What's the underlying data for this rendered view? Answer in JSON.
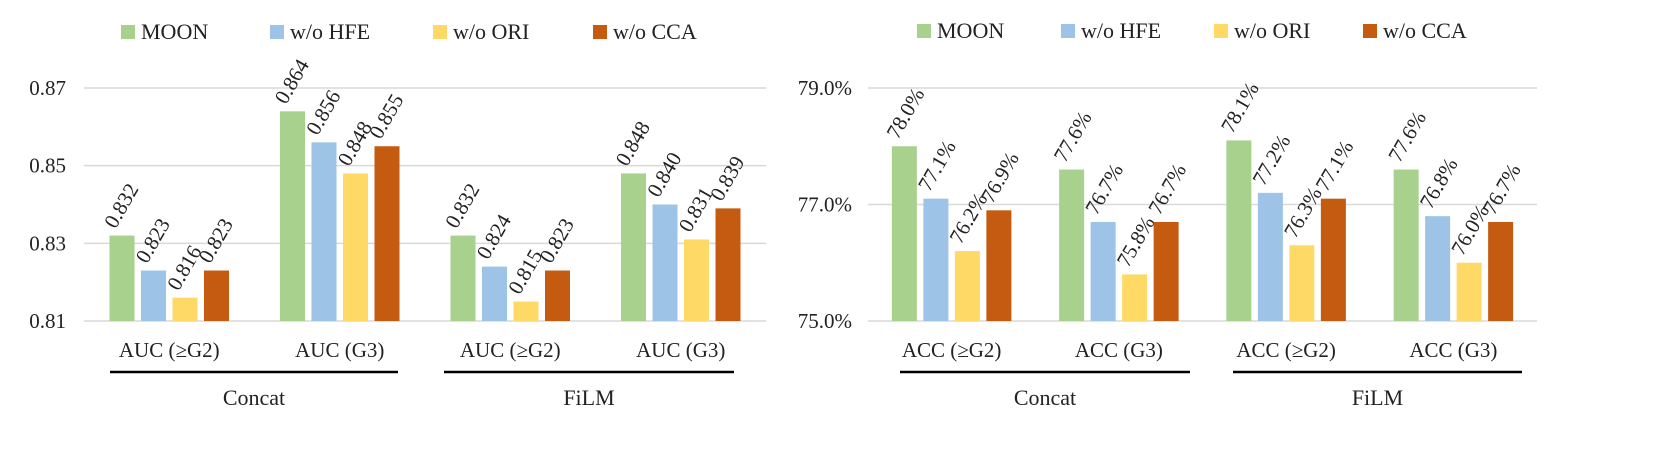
{
  "colors": {
    "MOON": "#a9d18e",
    "w/o HFE": "#9dc3e6",
    "w/o ORI": "#ffd966",
    "w/o CCA": "#c55a11",
    "grid": "#d9d9d9",
    "axis_text": "#222222"
  },
  "chart_data": [
    {
      "type": "bar",
      "metric": "AUC",
      "legend": [
        "MOON",
        "w/o HFE",
        "w/o ORI",
        "w/o CCA"
      ],
      "legend_position": "top",
      "categories": [
        "AUC (≥G2)",
        "AUC (G3)",
        "AUC (≥G2)",
        "AUC (G3)"
      ],
      "groups": [
        {
          "label": "Concat",
          "categories": [
            "AUC (≥G2)",
            "AUC (G3)"
          ]
        },
        {
          "label": "FiLM",
          "categories": [
            "AUC (≥G2)",
            "AUC (G3)"
          ]
        }
      ],
      "series": [
        {
          "name": "MOON",
          "values": [
            0.832,
            0.864,
            0.832,
            0.848
          ]
        },
        {
          "name": "w/o HFE",
          "values": [
            0.823,
            0.856,
            0.824,
            0.84
          ]
        },
        {
          "name": "w/o ORI",
          "values": [
            0.816,
            0.848,
            0.815,
            0.831
          ]
        },
        {
          "name": "w/o CCA",
          "values": [
            0.823,
            0.855,
            0.823,
            0.839
          ]
        }
      ],
      "value_labels": [
        [
          "0.832",
          "0.864",
          "0.832",
          "0.848"
        ],
        [
          "0.823",
          "0.856",
          "0.824",
          "0.840"
        ],
        [
          "0.816",
          "0.848",
          "0.815",
          "0.831"
        ],
        [
          "0.823",
          "0.855",
          "0.823",
          "0.839"
        ]
      ],
      "ylim": [
        0.81,
        0.87
      ],
      "yticks": [
        0.81,
        0.83,
        0.85,
        0.87
      ],
      "ytick_labels": [
        "0.81",
        "0.83",
        "0.85",
        "0.87"
      ],
      "grid": true
    },
    {
      "type": "bar",
      "metric": "ACC",
      "legend": [
        "MOON",
        "w/o HFE",
        "w/o ORI",
        "w/o CCA"
      ],
      "legend_position": "top",
      "categories": [
        "ACC (≥G2)",
        "ACC (G3)",
        "ACC (≥G2)",
        "ACC (G3)"
      ],
      "groups": [
        {
          "label": "Concat",
          "categories": [
            "ACC (≥G2)",
            "ACC (G3)"
          ]
        },
        {
          "label": "FiLM",
          "categories": [
            "ACC (≥G2)",
            "ACC (G3)"
          ]
        }
      ],
      "series": [
        {
          "name": "MOON",
          "values": [
            78.0,
            77.6,
            78.1,
            77.6
          ]
        },
        {
          "name": "w/o HFE",
          "values": [
            77.1,
            76.7,
            77.2,
            76.8
          ]
        },
        {
          "name": "w/o ORI",
          "values": [
            76.2,
            75.8,
            76.3,
            76.0
          ]
        },
        {
          "name": "w/o CCA",
          "values": [
            76.9,
            76.7,
            77.1,
            76.7
          ]
        }
      ],
      "value_labels": [
        [
          "78.0%",
          "77.6%",
          "78.1%",
          "77.6%"
        ],
        [
          "77.1%",
          "76.7%",
          "77.2%",
          "76.8%"
        ],
        [
          "76.2%",
          "75.8%",
          "76.3%",
          "76.0%"
        ],
        [
          "76.9%",
          "76.7%",
          "77.1%",
          "76.7%"
        ]
      ],
      "ylim": [
        75.0,
        79.0
      ],
      "yticks": [
        75.0,
        77.0,
        79.0
      ],
      "ytick_labels": [
        "75.0%",
        "77.0%",
        "79.0%"
      ],
      "grid": true
    }
  ]
}
